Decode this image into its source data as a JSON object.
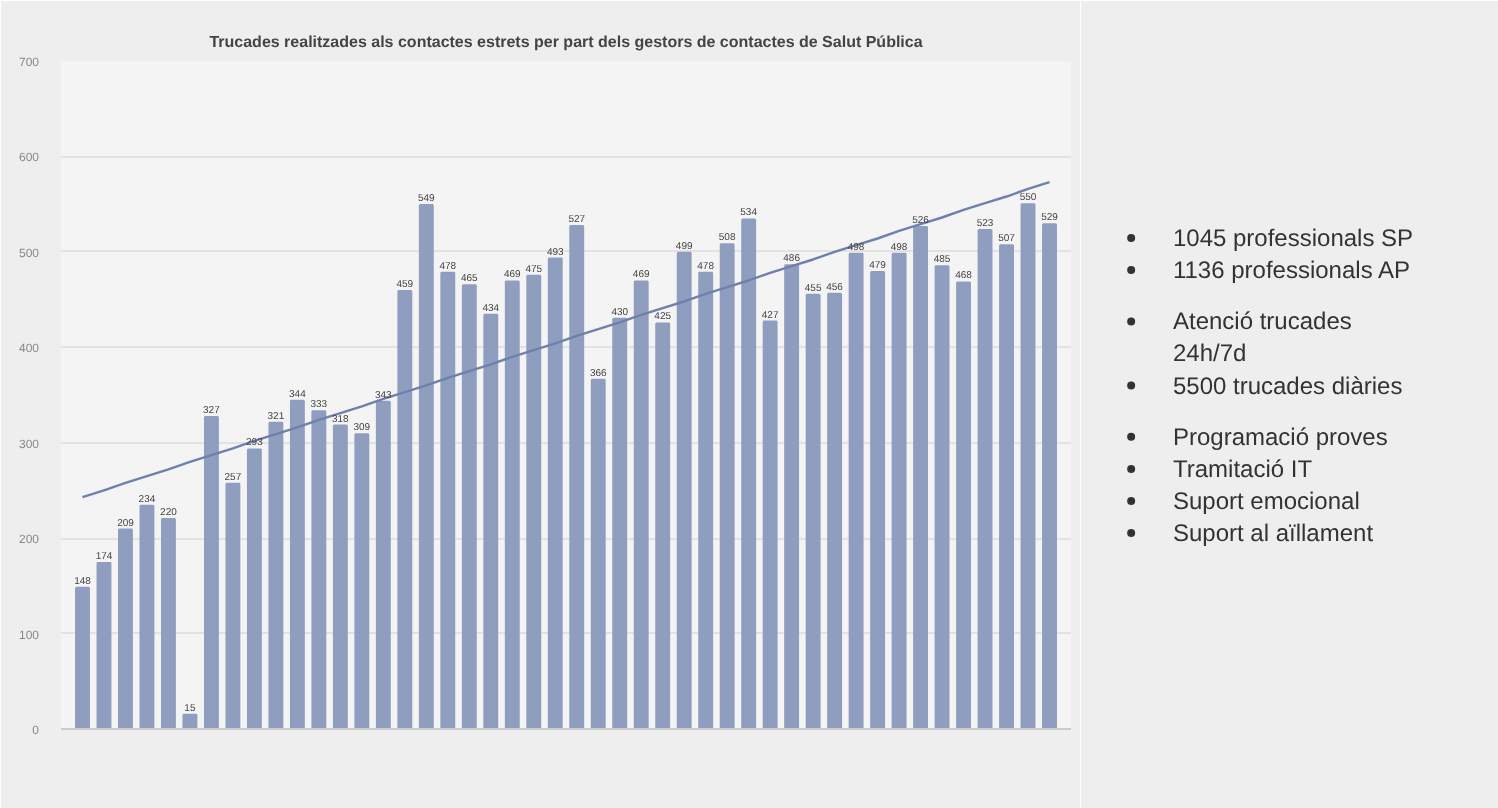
{
  "chart_data": {
    "type": "bar",
    "title": "Trucades realitzades als contactes estrets per part dels gestors de contactes de Salut Pública",
    "categories": [
      null,
      null,
      null,
      null,
      null,
      null,
      null,
      null,
      null,
      null,
      null,
      null,
      null,
      null,
      null,
      null,
      null,
      null,
      null,
      null,
      null,
      null,
      null,
      null,
      null,
      null,
      null,
      null,
      null,
      null,
      null,
      null,
      null,
      null,
      null,
      null,
      null,
      null,
      null,
      null,
      null,
      null,
      null,
      null,
      null,
      null
    ],
    "series": [
      {
        "color": "#8f9dbf",
        "values": [
          148,
          174,
          209,
          234,
          220,
          15,
          327,
          257,
          293,
          321,
          344,
          333,
          318,
          309,
          343,
          459,
          549,
          478,
          465,
          434,
          469,
          475,
          493,
          527,
          366,
          430,
          469,
          425,
          499,
          478,
          508,
          534,
          427,
          486,
          455,
          456,
          498,
          479,
          498,
          526,
          485,
          468,
          523,
          507,
          550,
          529
        ],
        "value_labels": [
          "148",
          "174",
          "209",
          "234",
          "220",
          "15",
          "327",
          "257",
          "293",
          "321",
          "344",
          "333",
          "318",
          "309",
          "343",
          "459",
          "549",
          "478",
          "465",
          "434",
          "469",
          "475",
          "493",
          "527",
          "366",
          "430",
          "469",
          "425",
          "499",
          "478",
          "508",
          "534",
          "427",
          "486",
          "455",
          "456",
          "498",
          "479",
          "498",
          "526",
          "485",
          "468",
          "523",
          "507",
          "550",
          "529"
        ]
      },
      {
        "type": "line",
        "color": "#6f80aa",
        "values": [
          243,
          250,
          258,
          265,
          272,
          280,
          287,
          294,
          302,
          309,
          316,
          324,
          331,
          338,
          346,
          353,
          360,
          368,
          375,
          382,
          390,
          397,
          404,
          412,
          419,
          426,
          434,
          441,
          448,
          456,
          463,
          470,
          478,
          485,
          492,
          500,
          507,
          514,
          522,
          529,
          536,
          544,
          551,
          558,
          566,
          573
        ]
      }
    ],
    "ylim": [
      0,
      700
    ],
    "yticks": [
      0,
      100,
      200,
      300,
      400,
      500,
      600,
      700
    ],
    "grid": "y",
    "annotations": [
      "1045 professionals SP",
      "1136 professionals AP",
      "Atenció trucades 24h/7d",
      "5500 trucades diàries",
      "Programació proves",
      "Tramitació IT",
      "Suport emocional",
      "Suport al aïllament"
    ]
  }
}
